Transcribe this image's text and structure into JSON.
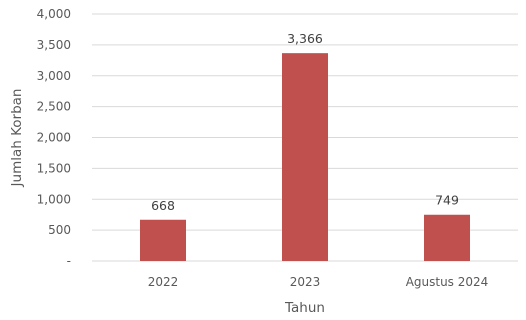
{
  "chart_data": {
    "type": "bar",
    "categories": [
      "2022",
      "2023",
      "Agustus 2024"
    ],
    "values": [
      668,
      3366,
      749
    ],
    "value_labels": [
      "668",
      "3,366",
      "749"
    ],
    "xlabel": "Tahun",
    "ylabel": "Jumlah Korban",
    "ylim": [
      0,
      4000
    ],
    "yticks": [
      0,
      500,
      1000,
      1500,
      2000,
      2500,
      3000,
      3500,
      4000
    ],
    "ytick_labels": [
      "-",
      "500",
      "1,000",
      "1,500",
      "2,000",
      "2,500",
      "3,000",
      "3,500",
      "4,000"
    ],
    "grid": true,
    "legend": "none",
    "bar_color": "#c0504d"
  }
}
